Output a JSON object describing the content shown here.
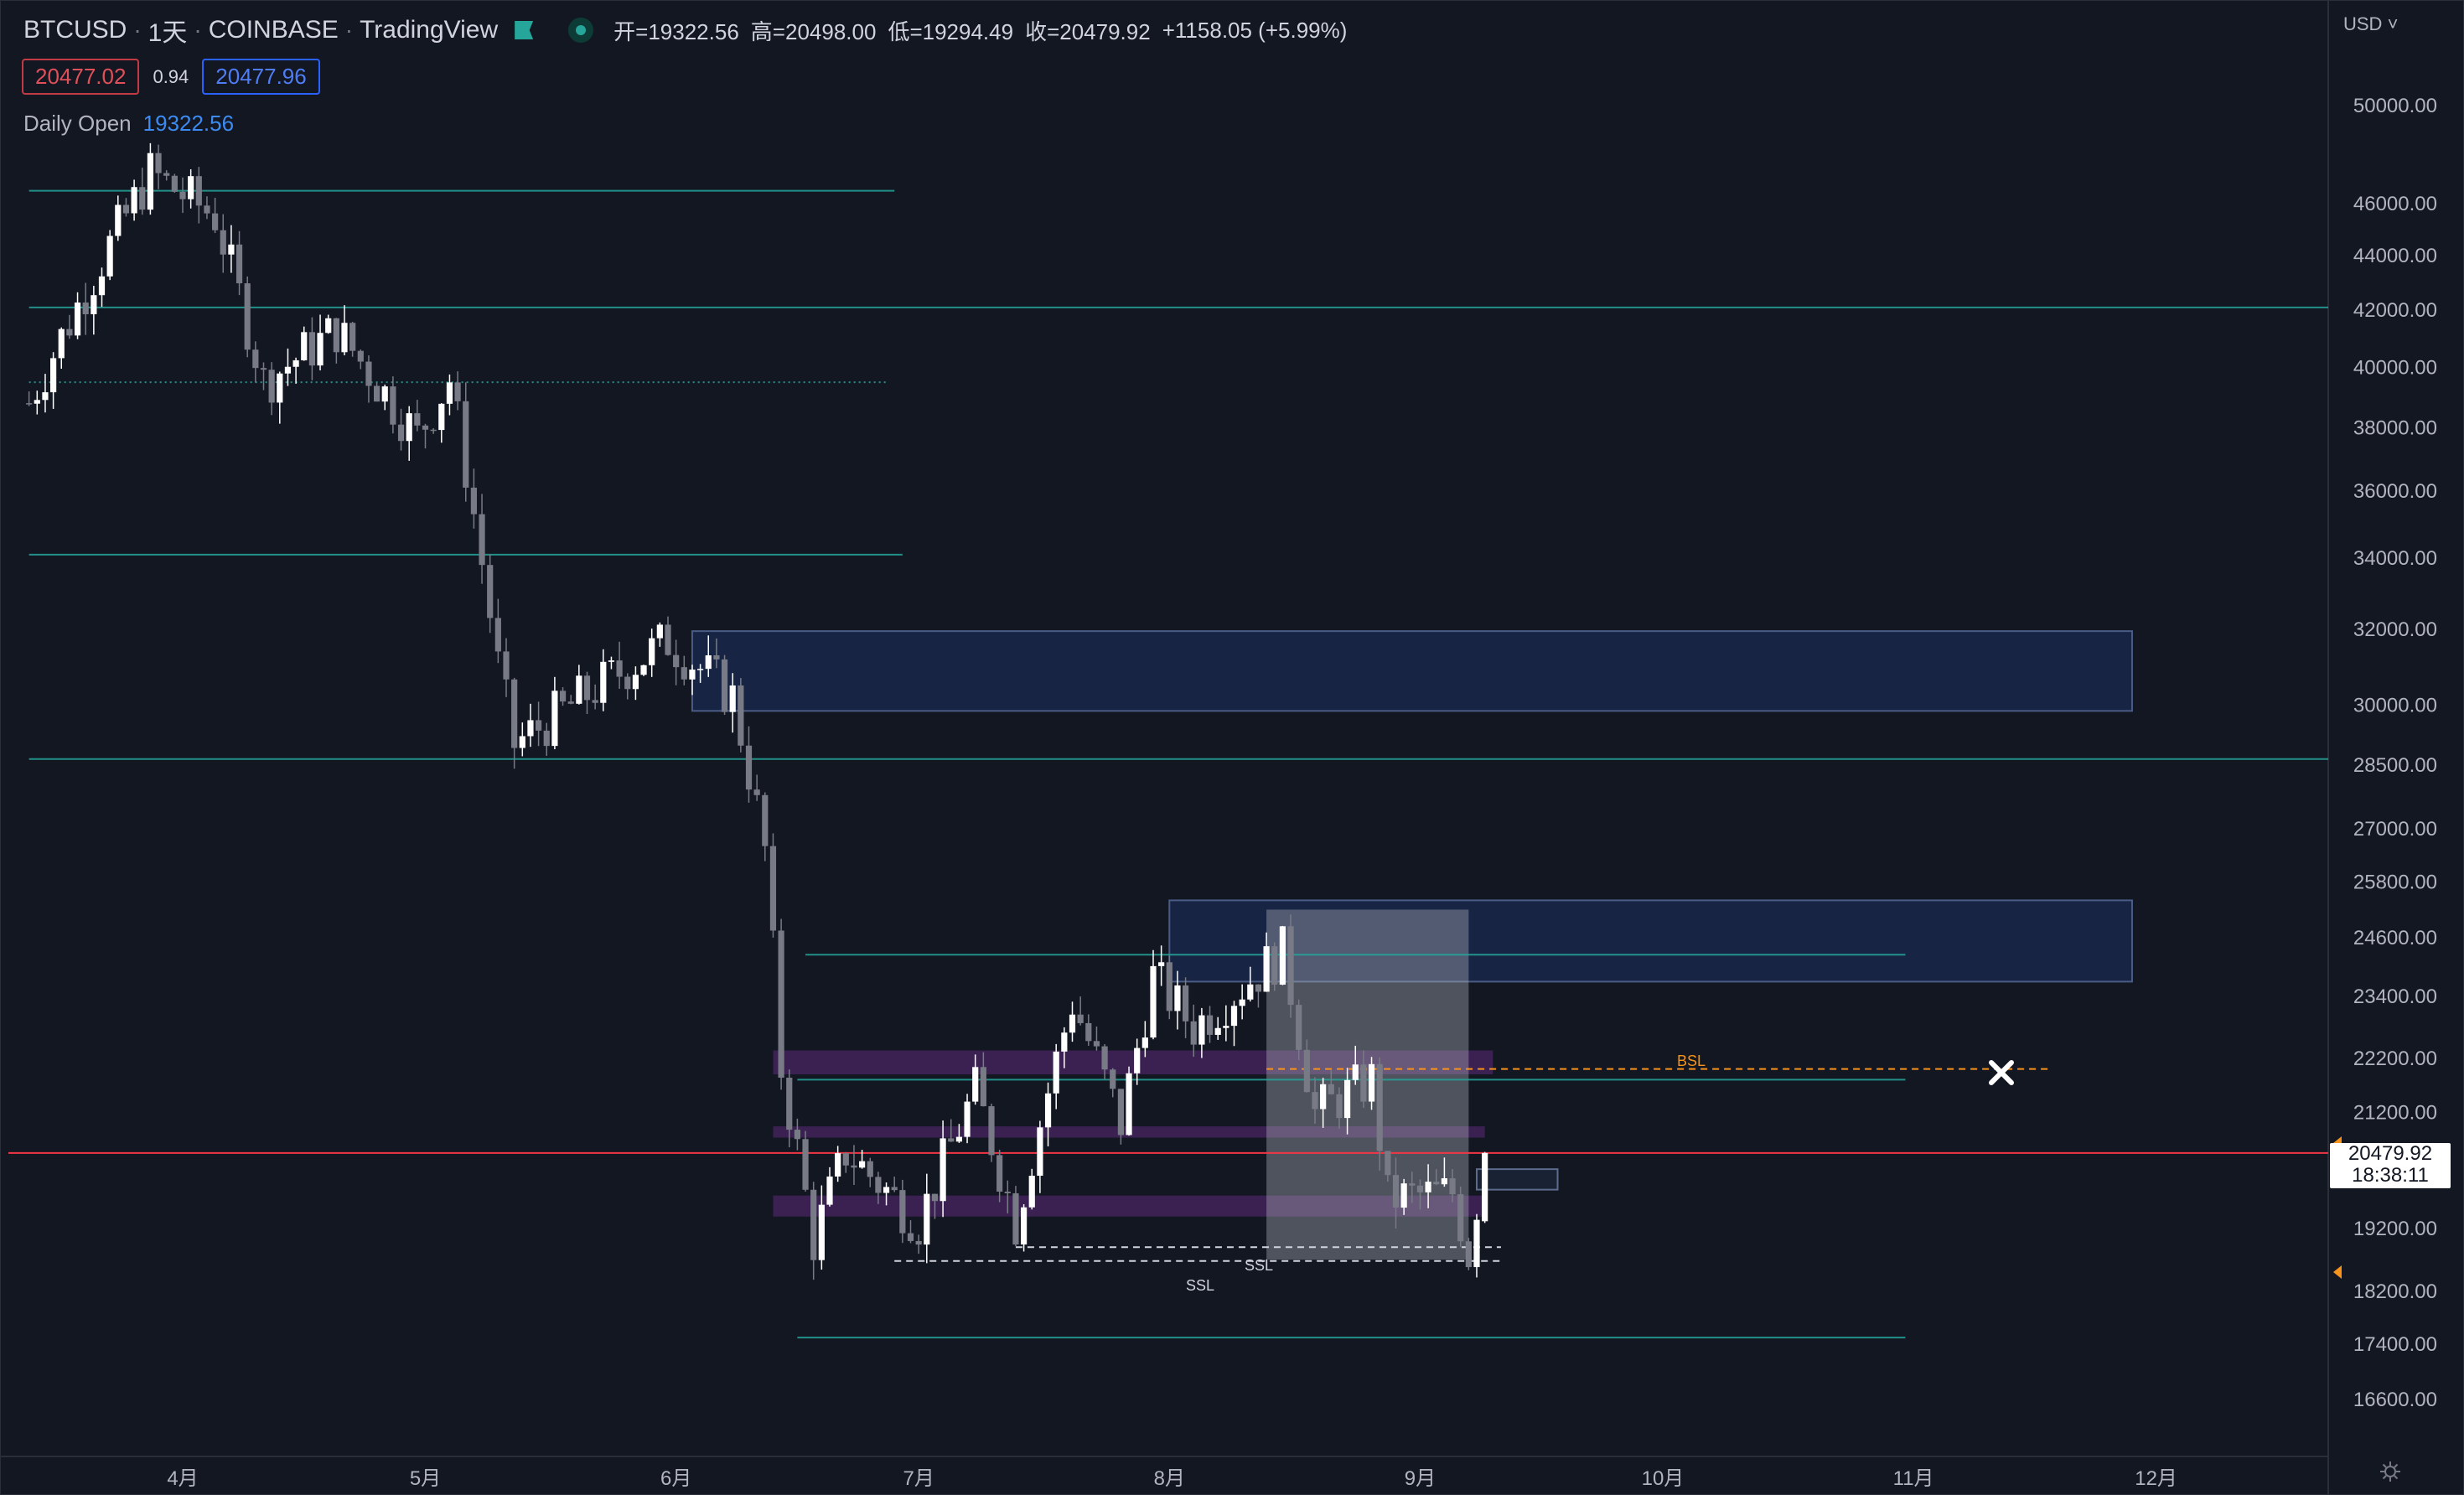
{
  "header": {
    "symbol": "BTCUSD",
    "interval": "1天",
    "exchange": "COINBASE",
    "platform": "TradingView",
    "open": "开=19322.56",
    "high": "高=20498.00",
    "low": "低=19294.49",
    "close": "收=20479.92",
    "change": "+1158.05 (+5.99%)"
  },
  "quote": {
    "bid": "20477.02",
    "spread": "0.94",
    "ask": "20477.96"
  },
  "indicator": {
    "label": "Daily Open",
    "value": "19322.56"
  },
  "axis": {
    "currency": "USD"
  },
  "current_price": {
    "value": "20479.92",
    "countdown": "18:38:11"
  },
  "drawings": {
    "bsl_label": "BSL",
    "ssl_label_1": "SSL",
    "ssl_label_2": "SSL"
  },
  "colors": {
    "background": "#131722",
    "up": "#ffffff",
    "down": "#787b86",
    "level": "#26a69a",
    "current": "#f23645",
    "bsl": "#f7931a"
  },
  "chart_data": {
    "type": "candlestick",
    "symbol": "BTCUSD",
    "interval": "1D",
    "y_scale": "log",
    "y_ticks": [
      50000,
      46000,
      44000,
      42000,
      40000,
      38000,
      36000,
      34000,
      32000,
      30000,
      28500,
      27000,
      25800,
      24600,
      23400,
      22200,
      21200,
      19200,
      18200,
      17400,
      16600
    ],
    "y_tick_labels": [
      "50000.00",
      "46000.00",
      "44000.00",
      "42000.00",
      "40000.00",
      "38000.00",
      "36000.00",
      "34000.00",
      "32000.00",
      "30000.00",
      "28500.00",
      "27000.00",
      "25800.00",
      "24600.00",
      "23400.00",
      "22200.00",
      "21200.00",
      "19200.00",
      "18200.00",
      "17400.00",
      "16600.00"
    ],
    "x_tick_labels": [
      "4月",
      "5月",
      "6月",
      "7月",
      "8月",
      "9月",
      "10月",
      "11月",
      "12月"
    ],
    "x_tick_dates": [
      "2022-04-01",
      "2022-05-01",
      "2022-06-01",
      "2022-07-01",
      "2022-08-01",
      "2022-09-01",
      "2022-10-01",
      "2022-11-01",
      "2022-12-01"
    ],
    "price_anchors": [
      [
        "2022-03-13",
        38800
      ],
      [
        "2022-03-28",
        47200
      ],
      [
        "2022-04-05",
        45500
      ],
      [
        "2022-04-11",
        39500
      ],
      [
        "2022-04-20",
        41300
      ],
      [
        "2022-04-30",
        37700
      ],
      [
        "2022-05-04",
        39600
      ],
      [
        "2022-05-10",
        31000
      ],
      [
        "2022-05-12",
        29000
      ],
      [
        "2022-05-31",
        31700
      ],
      [
        "2022-06-08",
        30200
      ],
      [
        "2022-06-12",
        26500
      ],
      [
        "2022-06-14",
        22000
      ],
      [
        "2022-06-18",
        19000
      ],
      [
        "2022-06-22",
        20500
      ],
      [
        "2022-07-01",
        19300
      ],
      [
        "2022-07-08",
        21600
      ],
      [
        "2022-07-13",
        19300
      ],
      [
        "2022-07-20",
        23300
      ],
      [
        "2022-07-26",
        21000
      ],
      [
        "2022-07-30",
        23800
      ],
      [
        "2022-08-04",
        22800
      ],
      [
        "2022-08-15",
        24300
      ],
      [
        "2022-08-19",
        21200
      ],
      [
        "2022-08-26",
        21800
      ],
      [
        "2022-08-28",
        19700
      ],
      [
        "2022-09-05",
        19800
      ],
      [
        "2022-09-07",
        18800
      ],
      [
        "2022-09-09",
        20480
      ]
    ],
    "last": {
      "date": "2022-09-09",
      "open": 19322.56,
      "high": 20498.0,
      "low": 19294.49,
      "close": 20479.92
    },
    "horizontal_levels": [
      {
        "price": 46500,
        "from": "2022-03-13",
        "to": "2022-06-28",
        "style": "solid"
      },
      {
        "price": 42100,
        "from": "2022-03-13",
        "to": "2023-01-01",
        "style": "solid"
      },
      {
        "price": 39500,
        "from": "2022-03-13",
        "to": "2022-06-27",
        "style": "dotted"
      },
      {
        "price": 34100,
        "from": "2022-03-13",
        "to": "2022-06-29",
        "style": "solid"
      },
      {
        "price": 28650,
        "from": "2022-03-13",
        "to": "2023-01-01",
        "style": "solid"
      },
      {
        "price": 24250,
        "from": "2022-06-17",
        "to": "2022-10-31",
        "style": "solid"
      },
      {
        "price": 21800,
        "from": "2022-06-16",
        "to": "2022-10-31",
        "style": "solid"
      },
      {
        "price": 17500,
        "from": "2022-06-16",
        "to": "2022-10-31",
        "style": "solid"
      }
    ],
    "zones": [
      {
        "kind": "supply",
        "from": "2022-06-03",
        "to": "2022-12-01",
        "top": 31950,
        "bottom": 29850
      },
      {
        "kind": "supply",
        "from": "2022-08-01",
        "to": "2022-12-01",
        "top": 25400,
        "bottom": 23700
      },
      {
        "kind": "order-block",
        "from": "2022-06-13",
        "to": "2022-09-10",
        "top": 22350,
        "bottom": 21900
      },
      {
        "kind": "order-block",
        "from": "2022-06-13",
        "to": "2022-09-09",
        "top": 20950,
        "bottom": 20750
      },
      {
        "kind": "order-block",
        "from": "2022-06-13",
        "to": "2022-09-09",
        "top": 19750,
        "bottom": 19400
      },
      {
        "kind": "range",
        "from": "2022-08-13",
        "to": "2022-09-07",
        "top": 25200,
        "bottom": 18700
      },
      {
        "kind": "target",
        "from": "2022-09-08",
        "to": "2022-09-18",
        "top": 20200,
        "bottom": 19850
      }
    ],
    "liquidity": [
      {
        "label": "BSL",
        "price": 22000,
        "from": "2022-08-13",
        "to": "2022-11-18"
      },
      {
        "label": "SSL",
        "price": 18900,
        "from": "2022-07-13",
        "to": "2022-09-11"
      },
      {
        "label": "SSL",
        "price": 18680,
        "from": "2022-06-28",
        "to": "2022-09-11"
      }
    ],
    "current_price_line": 20479.92
  }
}
